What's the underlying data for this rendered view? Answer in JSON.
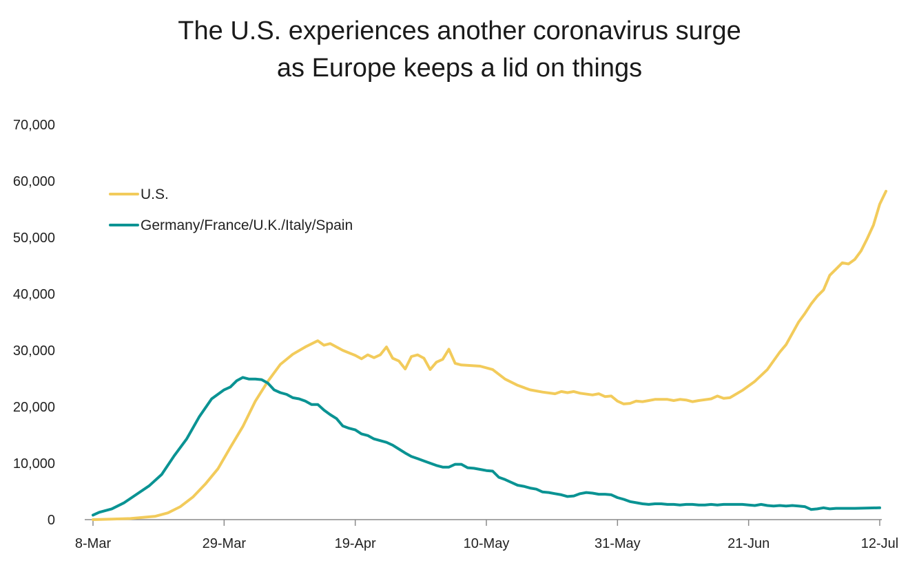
{
  "chart_data": {
    "type": "line",
    "title_line1": "The U.S. experiences another coronavirus surge",
    "title_line2": "as Europe keeps a lid on things",
    "xlabel": "",
    "ylabel": "",
    "ylim": [
      0,
      70000
    ],
    "yticks": [
      0,
      10000,
      20000,
      30000,
      40000,
      50000,
      60000,
      70000
    ],
    "ytick_labels": [
      "0",
      "10,000",
      "20,000",
      "30,000",
      "40,000",
      "50,000",
      "60,000",
      "70,000"
    ],
    "xlim_day": [
      0,
      126
    ],
    "xticks_day": [
      0,
      21,
      42,
      63,
      84,
      105,
      126
    ],
    "xtick_labels": [
      "8-Mar",
      "29-Mar",
      "19-Apr",
      "10-May",
      "31-May",
      "21-Jun",
      "12-Jul"
    ],
    "grid": false,
    "legend": "upper-left",
    "series": [
      {
        "name": "U.S.",
        "color": "#F2CB5B",
        "points": [
          [
            0,
            0
          ],
          [
            3,
            100
          ],
          [
            6,
            200
          ],
          [
            8,
            400
          ],
          [
            10,
            600
          ],
          [
            12,
            1200
          ],
          [
            14,
            2300
          ],
          [
            16,
            4000
          ],
          [
            18,
            6300
          ],
          [
            20,
            9000
          ],
          [
            22,
            12800
          ],
          [
            24,
            16500
          ],
          [
            26,
            21000
          ],
          [
            28,
            24500
          ],
          [
            30,
            27500
          ],
          [
            32,
            29300
          ],
          [
            34,
            30600
          ],
          [
            36,
            31700
          ],
          [
            37,
            30900
          ],
          [
            38,
            31200
          ],
          [
            40,
            30000
          ],
          [
            42,
            29100
          ],
          [
            43,
            28500
          ],
          [
            44,
            29200
          ],
          [
            45,
            28700
          ],
          [
            46,
            29200
          ],
          [
            47,
            30600
          ],
          [
            48,
            28600
          ],
          [
            49,
            28100
          ],
          [
            50,
            26700
          ],
          [
            51,
            28900
          ],
          [
            52,
            29200
          ],
          [
            53,
            28600
          ],
          [
            54,
            26600
          ],
          [
            55,
            27900
          ],
          [
            56,
            28400
          ],
          [
            57,
            30200
          ],
          [
            58,
            27700
          ],
          [
            59,
            27400
          ],
          [
            62,
            27200
          ],
          [
            64,
            26600
          ],
          [
            66,
            24900
          ],
          [
            68,
            23800
          ],
          [
            70,
            23000
          ],
          [
            72,
            22600
          ],
          [
            74,
            22300
          ],
          [
            75,
            22700
          ],
          [
            76,
            22500
          ],
          [
            77,
            22700
          ],
          [
            78,
            22400
          ],
          [
            80,
            22100
          ],
          [
            81,
            22300
          ],
          [
            82,
            21800
          ],
          [
            83,
            21900
          ],
          [
            84,
            21000
          ],
          [
            85,
            20500
          ],
          [
            86,
            20600
          ],
          [
            87,
            21000
          ],
          [
            88,
            20900
          ],
          [
            89,
            21100
          ],
          [
            90,
            21300
          ],
          [
            92,
            21300
          ],
          [
            93,
            21100
          ],
          [
            94,
            21300
          ],
          [
            95,
            21200
          ],
          [
            96,
            20900
          ],
          [
            97,
            21100
          ],
          [
            99,
            21400
          ],
          [
            100,
            21900
          ],
          [
            101,
            21500
          ],
          [
            102,
            21600
          ],
          [
            104,
            22900
          ],
          [
            106,
            24500
          ],
          [
            108,
            26600
          ],
          [
            110,
            29700
          ],
          [
            111,
            31000
          ],
          [
            113,
            35000
          ],
          [
            114,
            36500
          ],
          [
            115,
            38200
          ],
          [
            116,
            39600
          ],
          [
            117,
            40700
          ],
          [
            118,
            43300
          ],
          [
            119,
            44400
          ],
          [
            120,
            45500
          ],
          [
            121,
            45300
          ],
          [
            122,
            46100
          ],
          [
            123,
            47600
          ],
          [
            124,
            49800
          ],
          [
            125,
            52200
          ],
          [
            126,
            55900
          ],
          [
            127,
            58200
          ]
        ]
      },
      {
        "name": "Germany/France/U.K./Italy/Spain",
        "color": "#0A9393",
        "points": [
          [
            0,
            800
          ],
          [
            1,
            1300
          ],
          [
            3,
            1900
          ],
          [
            5,
            3000
          ],
          [
            7,
            4500
          ],
          [
            9,
            6000
          ],
          [
            11,
            8000
          ],
          [
            13,
            11300
          ],
          [
            15,
            14300
          ],
          [
            17,
            18200
          ],
          [
            19,
            21400
          ],
          [
            21,
            23000
          ],
          [
            22,
            23500
          ],
          [
            23,
            24600
          ],
          [
            24,
            25200
          ],
          [
            25,
            24900
          ],
          [
            26,
            24900
          ],
          [
            27,
            24800
          ],
          [
            28,
            24200
          ],
          [
            29,
            23000
          ],
          [
            30,
            22500
          ],
          [
            31,
            22200
          ],
          [
            32,
            21600
          ],
          [
            33,
            21400
          ],
          [
            34,
            21000
          ],
          [
            35,
            20400
          ],
          [
            36,
            20400
          ],
          [
            37,
            19400
          ],
          [
            38,
            18600
          ],
          [
            39,
            17900
          ],
          [
            40,
            16600
          ],
          [
            41,
            16200
          ],
          [
            42,
            15900
          ],
          [
            43,
            15200
          ],
          [
            44,
            14900
          ],
          [
            45,
            14300
          ],
          [
            46,
            14000
          ],
          [
            47,
            13700
          ],
          [
            48,
            13200
          ],
          [
            49,
            12500
          ],
          [
            50,
            11800
          ],
          [
            51,
            11200
          ],
          [
            52,
            10800
          ],
          [
            53,
            10400
          ],
          [
            54,
            10000
          ],
          [
            55,
            9600
          ],
          [
            56,
            9300
          ],
          [
            57,
            9300
          ],
          [
            58,
            9800
          ],
          [
            59,
            9800
          ],
          [
            60,
            9200
          ],
          [
            61,
            9100
          ],
          [
            62,
            8900
          ],
          [
            63,
            8700
          ],
          [
            64,
            8600
          ],
          [
            65,
            7500
          ],
          [
            66,
            7100
          ],
          [
            67,
            6600
          ],
          [
            68,
            6100
          ],
          [
            69,
            5900
          ],
          [
            70,
            5600
          ],
          [
            71,
            5400
          ],
          [
            72,
            4900
          ],
          [
            73,
            4800
          ],
          [
            74,
            4600
          ],
          [
            75,
            4400
          ],
          [
            76,
            4100
          ],
          [
            77,
            4200
          ],
          [
            78,
            4600
          ],
          [
            79,
            4800
          ],
          [
            80,
            4700
          ],
          [
            81,
            4500
          ],
          [
            82,
            4500
          ],
          [
            83,
            4400
          ],
          [
            84,
            3900
          ],
          [
            85,
            3600
          ],
          [
            86,
            3200
          ],
          [
            87,
            3000
          ],
          [
            88,
            2800
          ],
          [
            89,
            2700
          ],
          [
            90,
            2800
          ],
          [
            91,
            2800
          ],
          [
            92,
            2700
          ],
          [
            93,
            2700
          ],
          [
            94,
            2600
          ],
          [
            95,
            2700
          ],
          [
            96,
            2700
          ],
          [
            97,
            2600
          ],
          [
            98,
            2600
          ],
          [
            99,
            2700
          ],
          [
            100,
            2600
          ],
          [
            101,
            2700
          ],
          [
            102,
            2700
          ],
          [
            103,
            2700
          ],
          [
            104,
            2700
          ],
          [
            105,
            2600
          ],
          [
            106,
            2500
          ],
          [
            107,
            2700
          ],
          [
            108,
            2500
          ],
          [
            109,
            2400
          ],
          [
            110,
            2500
          ],
          [
            111,
            2400
          ],
          [
            112,
            2500
          ],
          [
            113,
            2400
          ],
          [
            114,
            2300
          ],
          [
            115,
            1800
          ],
          [
            116,
            1900
          ],
          [
            117,
            2100
          ],
          [
            118,
            1900
          ],
          [
            119,
            2000
          ],
          [
            120,
            2000
          ],
          [
            121,
            2000
          ],
          [
            122,
            2000
          ],
          [
            126,
            2100
          ]
        ]
      }
    ]
  }
}
